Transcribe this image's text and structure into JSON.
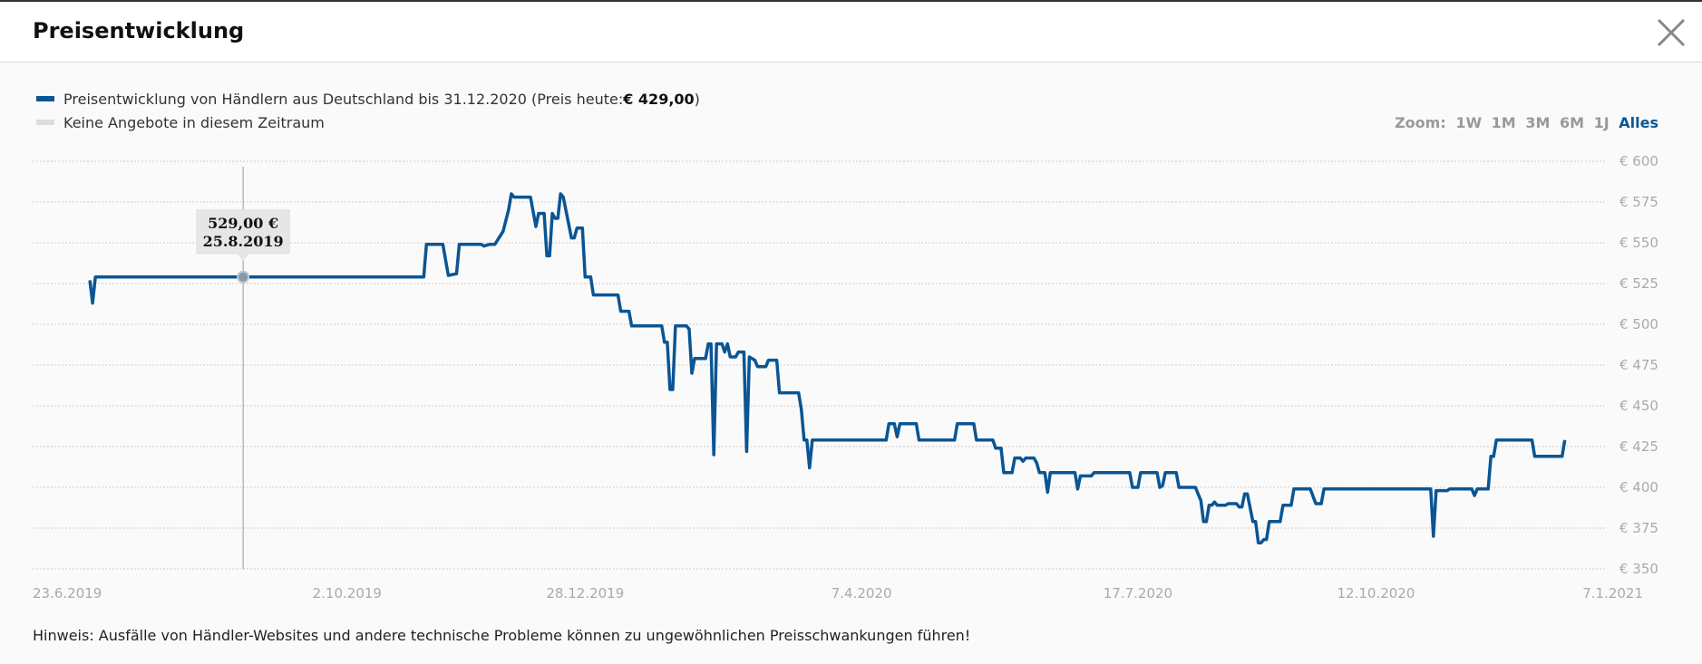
{
  "dialog": {
    "title": "Preisentwicklung",
    "note": "Hinweis: Ausfälle von Händler-Websites und andere technische Probleme können zu ungewöhnlichen Preisschwankungen führen!"
  },
  "legend": {
    "series_text": "Preisentwicklung von Händlern aus Deutschland bis 31.12.2020 (Preis heute: ",
    "price_today": "€ 429,00",
    "series_close": ")",
    "no_offers": "Keine Angebote in diesem Zeitraum"
  },
  "zoom": {
    "label": "Zoom:",
    "options": [
      "1W",
      "1M",
      "3M",
      "6M",
      "1J",
      "Alles"
    ],
    "active": "Alles"
  },
  "tooltip": {
    "price": "529,00 €",
    "date": "25.8.2019"
  },
  "icons": {
    "close": "close-icon"
  },
  "colors": {
    "series": "#0a5594",
    "no_offers": "#dddddd"
  },
  "chart_data": {
    "type": "line",
    "ylim": [
      350,
      600
    ],
    "y_ticks": [
      "€ 600",
      "€ 575",
      "€ 550",
      "€ 525",
      "€ 500",
      "€ 475",
      "€ 450",
      "€ 425",
      "€ 400",
      "€ 375",
      "€ 350"
    ],
    "y_tick_values": [
      600,
      575,
      550,
      525,
      500,
      475,
      450,
      425,
      400,
      375,
      350
    ],
    "x_range": [
      "2019-06-23",
      "2021-01-07"
    ],
    "x_ticks": [
      {
        "label": "23.6.2019",
        "date": "2019-06-23"
      },
      {
        "label": "2.10.2019",
        "date": "2019-10-02"
      },
      {
        "label": "28.12.2019",
        "date": "2019-12-28"
      },
      {
        "label": "7.4.2020",
        "date": "2020-04-07"
      },
      {
        "label": "17.7.2020",
        "date": "2020-07-17"
      },
      {
        "label": "12.10.2020",
        "date": "2020-10-12"
      },
      {
        "label": "7.1.2021",
        "date": "2021-01-07"
      }
    ],
    "highlight": {
      "date": "2019-08-25",
      "value": 529
    },
    "series": [
      {
        "points": [
          [
            "2019-06-30",
            527
          ],
          [
            "2019-07-01",
            513
          ],
          [
            "2019-07-02",
            529
          ],
          [
            "2019-10-30",
            529
          ],
          [
            "2019-10-31",
            549
          ],
          [
            "2019-11-06",
            549
          ],
          [
            "2019-11-08",
            530
          ],
          [
            "2019-11-11",
            531
          ],
          [
            "2019-11-12",
            549
          ],
          [
            "2019-11-20",
            549
          ],
          [
            "2019-11-21",
            548
          ],
          [
            "2019-11-23",
            549
          ],
          [
            "2019-11-25",
            549
          ],
          [
            "2019-11-28",
            557
          ],
          [
            "2019-11-30",
            570
          ],
          [
            "2019-12-01",
            580
          ],
          [
            "2019-12-02",
            578
          ],
          [
            "2019-12-08",
            578
          ],
          [
            "2019-12-10",
            560
          ],
          [
            "2019-12-11",
            568
          ],
          [
            "2019-12-13",
            568
          ],
          [
            "2019-12-14",
            542
          ],
          [
            "2019-12-15",
            542
          ],
          [
            "2019-12-16",
            568
          ],
          [
            "2019-12-17",
            565
          ],
          [
            "2019-12-18",
            565
          ],
          [
            "2019-12-19",
            580
          ],
          [
            "2019-12-20",
            578
          ],
          [
            "2019-12-23",
            553
          ],
          [
            "2019-12-24",
            553
          ],
          [
            "2019-12-25",
            559
          ],
          [
            "2019-12-27",
            559
          ],
          [
            "2019-12-28",
            529
          ],
          [
            "2019-12-30",
            529
          ],
          [
            "2019-12-31",
            518
          ],
          [
            "2020-01-09",
            518
          ],
          [
            "2020-01-10",
            508
          ],
          [
            "2020-01-13",
            508
          ],
          [
            "2020-01-14",
            499
          ],
          [
            "2020-01-23",
            499
          ],
          [
            "2020-01-25",
            499
          ],
          [
            "2020-01-26",
            489
          ],
          [
            "2020-01-27",
            489
          ],
          [
            "2020-01-28",
            460
          ],
          [
            "2020-01-29",
            460
          ],
          [
            "2020-01-30",
            499
          ],
          [
            "2020-02-03",
            499
          ],
          [
            "2020-02-04",
            497
          ],
          [
            "2020-02-05",
            470
          ],
          [
            "2020-02-06",
            479
          ],
          [
            "2020-02-10",
            479
          ],
          [
            "2020-02-11",
            488
          ],
          [
            "2020-02-12",
            488
          ],
          [
            "2020-02-13",
            420
          ],
          [
            "2020-02-14",
            488
          ],
          [
            "2020-02-16",
            488
          ],
          [
            "2020-02-17",
            483
          ],
          [
            "2020-02-18",
            488
          ],
          [
            "2020-02-19",
            480
          ],
          [
            "2020-02-21",
            480
          ],
          [
            "2020-02-22",
            483
          ],
          [
            "2020-02-24",
            483
          ],
          [
            "2020-02-25",
            422
          ],
          [
            "2020-02-26",
            480
          ],
          [
            "2020-02-28",
            478
          ],
          [
            "2020-02-29",
            474
          ],
          [
            "2020-03-03",
            474
          ],
          [
            "2020-03-04",
            478
          ],
          [
            "2020-03-07",
            478
          ],
          [
            "2020-03-08",
            458
          ],
          [
            "2020-03-15",
            458
          ],
          [
            "2020-03-16",
            448
          ],
          [
            "2020-03-17",
            429
          ],
          [
            "2020-03-18",
            429
          ],
          [
            "2020-03-19",
            412
          ],
          [
            "2020-03-20",
            429
          ],
          [
            "2020-04-16",
            429
          ],
          [
            "2020-04-17",
            439
          ],
          [
            "2020-04-19",
            439
          ],
          [
            "2020-04-20",
            431
          ],
          [
            "2020-04-21",
            439
          ],
          [
            "2020-04-27",
            439
          ],
          [
            "2020-04-28",
            429
          ],
          [
            "2020-05-11",
            429
          ],
          [
            "2020-05-12",
            439
          ],
          [
            "2020-05-18",
            439
          ],
          [
            "2020-05-19",
            429
          ],
          [
            "2020-05-25",
            429
          ],
          [
            "2020-05-26",
            424
          ],
          [
            "2020-05-28",
            424
          ],
          [
            "2020-05-29",
            409
          ],
          [
            "2020-06-01",
            409
          ],
          [
            "2020-06-02",
            418
          ],
          [
            "2020-06-04",
            418
          ],
          [
            "2020-06-05",
            416
          ],
          [
            "2020-06-06",
            418
          ],
          [
            "2020-06-09",
            418
          ],
          [
            "2020-06-10",
            415
          ],
          [
            "2020-06-11",
            409
          ],
          [
            "2020-06-13",
            409
          ],
          [
            "2020-06-14",
            397
          ],
          [
            "2020-06-15",
            409
          ],
          [
            "2020-06-24",
            409
          ],
          [
            "2020-06-25",
            399
          ],
          [
            "2020-06-26",
            407
          ],
          [
            "2020-06-30",
            407
          ],
          [
            "2020-07-01",
            409
          ],
          [
            "2020-07-14",
            409
          ],
          [
            "2020-07-15",
            400
          ],
          [
            "2020-07-17",
            400
          ],
          [
            "2020-07-18",
            409
          ],
          [
            "2020-07-24",
            409
          ],
          [
            "2020-07-25",
            400
          ],
          [
            "2020-07-26",
            401
          ],
          [
            "2020-07-27",
            409
          ],
          [
            "2020-07-31",
            409
          ],
          [
            "2020-08-01",
            400
          ],
          [
            "2020-08-07",
            400
          ],
          [
            "2020-08-09",
            392
          ],
          [
            "2020-08-10",
            379
          ],
          [
            "2020-08-11",
            379
          ],
          [
            "2020-08-12",
            389
          ],
          [
            "2020-08-13",
            389
          ],
          [
            "2020-08-14",
            391
          ],
          [
            "2020-08-15",
            389
          ],
          [
            "2020-08-18",
            389
          ],
          [
            "2020-08-19",
            390
          ],
          [
            "2020-08-22",
            390
          ],
          [
            "2020-08-23",
            388
          ],
          [
            "2020-08-24",
            388
          ],
          [
            "2020-08-25",
            396
          ],
          [
            "2020-08-26",
            396
          ],
          [
            "2020-08-28",
            379
          ],
          [
            "2020-08-29",
            379
          ],
          [
            "2020-08-30",
            366
          ],
          [
            "2020-08-31",
            366
          ],
          [
            "2020-09-01",
            368
          ],
          [
            "2020-09-02",
            368
          ],
          [
            "2020-09-03",
            379
          ],
          [
            "2020-09-07",
            379
          ],
          [
            "2020-09-08",
            389
          ],
          [
            "2020-09-11",
            389
          ],
          [
            "2020-09-12",
            399
          ],
          [
            "2020-09-18",
            399
          ],
          [
            "2020-09-20",
            390
          ],
          [
            "2020-09-22",
            390
          ],
          [
            "2020-09-23",
            399
          ],
          [
            "2020-11-01",
            399
          ],
          [
            "2020-11-02",
            370
          ],
          [
            "2020-11-03",
            398
          ],
          [
            "2020-11-07",
            398
          ],
          [
            "2020-11-08",
            399
          ],
          [
            "2020-11-16",
            399
          ],
          [
            "2020-11-17",
            395
          ],
          [
            "2020-11-18",
            399
          ],
          [
            "2020-11-22",
            399
          ],
          [
            "2020-11-23",
            419
          ],
          [
            "2020-11-24",
            419
          ],
          [
            "2020-11-25",
            429
          ],
          [
            "2020-12-08",
            429
          ],
          [
            "2020-12-09",
            419
          ],
          [
            "2020-12-19",
            419
          ],
          [
            "2020-12-20",
            429
          ]
        ]
      }
    ]
  }
}
